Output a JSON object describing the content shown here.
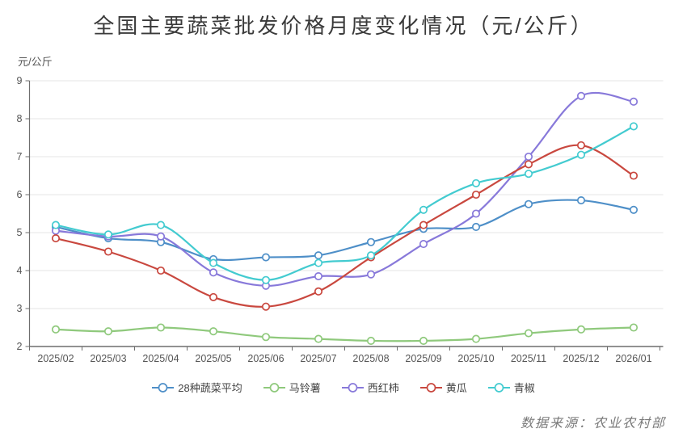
{
  "page": {
    "source": "数据来源：农业农村部"
  },
  "chart_data": {
    "type": "line",
    "title": "全国主要蔬菜批发价格月度变化情况（元/公斤）",
    "ylabel": "元/公斤",
    "xlabel": "",
    "ylim": [
      2,
      9
    ],
    "yticks": [
      9,
      8,
      7,
      6,
      5,
      4,
      3,
      2
    ],
    "grid": true,
    "smooth": true,
    "legend_position": "bottom",
    "marker_style": "hollow-circle",
    "categories": [
      "2025/02",
      "2025/03",
      "2025/04",
      "2025/05",
      "2025/06",
      "2025/07",
      "2025/08",
      "2025/09",
      "2025/10",
      "2025/11",
      "2025/12",
      "2026/01"
    ],
    "series": [
      {
        "name": "28种蔬菜平均",
        "color": "#4E8FC8",
        "values": [
          5.15,
          4.85,
          4.75,
          4.3,
          4.35,
          4.4,
          4.75,
          5.1,
          5.15,
          5.75,
          5.85,
          5.6
        ]
      },
      {
        "name": "马铃薯",
        "color": "#8FC97C",
        "values": [
          2.45,
          2.4,
          2.5,
          2.4,
          2.25,
          2.2,
          2.15,
          2.15,
          2.2,
          2.35,
          2.45,
          2.5
        ]
      },
      {
        "name": "西红柿",
        "color": "#8879DA",
        "values": [
          5.05,
          4.9,
          4.9,
          3.95,
          3.6,
          3.85,
          3.9,
          4.7,
          5.5,
          7.0,
          8.6,
          8.45
        ]
      },
      {
        "name": "黄瓜",
        "color": "#C9483F",
        "values": [
          4.85,
          4.5,
          4.0,
          3.3,
          3.05,
          3.45,
          4.35,
          5.2,
          6.0,
          6.8,
          7.3,
          6.5
        ]
      },
      {
        "name": "青椒",
        "color": "#43CBD0",
        "values": [
          5.2,
          4.95,
          5.2,
          4.2,
          3.75,
          4.2,
          4.4,
          5.6,
          6.3,
          6.55,
          7.05,
          7.8
        ]
      }
    ],
    "colors": {
      "grid_line": "#e4e4e4",
      "axis_line": "#6e6e6e",
      "tick_text": "#555555",
      "title_text": "#3a3a3a",
      "source_text": "#7a7a7a"
    }
  }
}
